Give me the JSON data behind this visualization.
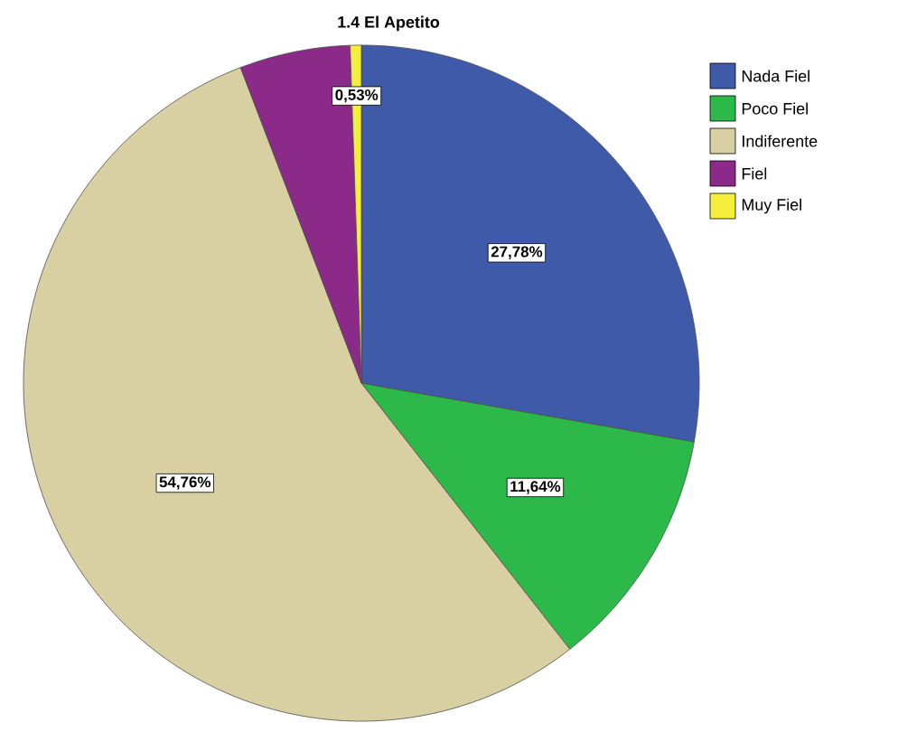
{
  "chart_data": {
    "type": "pie",
    "title": "1.4 El Apetito",
    "categories": [
      "Nada Fiel",
      "Poco Fiel",
      "Indiferente",
      "Fiel",
      "Muy Fiel"
    ],
    "values": [
      27.78,
      11.64,
      54.76,
      5.29,
      0.53
    ],
    "colors": [
      "#3f5aa8",
      "#2db84a",
      "#d8d0a2",
      "#8c2a8a",
      "#f4ef3c"
    ],
    "value_labels": [
      "27,78%",
      "11,64%",
      "54,76%",
      null,
      "0,53%"
    ],
    "legend": "top right"
  }
}
